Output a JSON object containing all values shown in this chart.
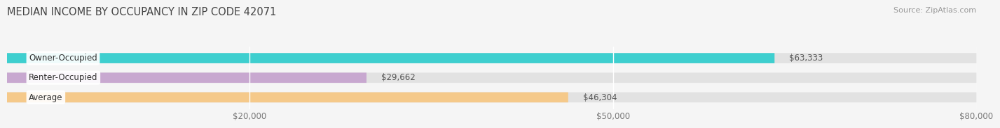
{
  "title": "MEDIAN INCOME BY OCCUPANCY IN ZIP CODE 42071",
  "source": "Source: ZipAtlas.com",
  "categories": [
    "Owner-Occupied",
    "Renter-Occupied",
    "Average"
  ],
  "values": [
    63333,
    29662,
    46304
  ],
  "bar_colors": [
    "#3ecfcf",
    "#c8a8d0",
    "#f5c98a"
  ],
  "value_labels": [
    "$63,333",
    "$29,662",
    "$46,304"
  ],
  "xlim": [
    0,
    80000
  ],
  "xticks": [
    0,
    20000,
    50000,
    80000
  ],
  "xtick_labels": [
    "",
    "$20,000",
    "$50,000",
    "$80,000"
  ],
  "background_color": "#f5f5f5",
  "bar_background_color": "#e2e2e2",
  "title_fontsize": 10.5,
  "label_fontsize": 8.5,
  "tick_fontsize": 8.5,
  "source_fontsize": 8
}
